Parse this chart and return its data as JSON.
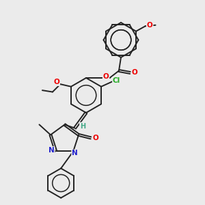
{
  "bg_color": "#ebebeb",
  "bond_color": "#222222",
  "bond_width": 1.4,
  "atom_colors": {
    "O": "#ee0000",
    "N": "#2222cc",
    "Cl": "#22aa22",
    "H": "#44aa88",
    "C": "#222222"
  },
  "font_size": 7.0
}
